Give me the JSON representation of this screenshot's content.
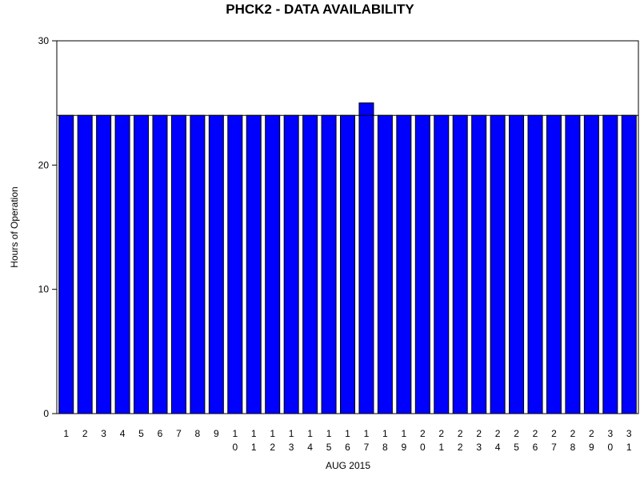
{
  "chart_data": {
    "type": "bar",
    "title": "PHCK2 - DATA AVAILABILITY",
    "xlabel": "AUG 2015",
    "ylabel": "Hours of Operation",
    "ylim": [
      0,
      30
    ],
    "yticks": [
      0,
      10,
      20,
      30
    ],
    "reference_line": 24,
    "bar_color": "#0000ff",
    "grid": false,
    "categories": [
      "1",
      "2",
      "3",
      "4",
      "5",
      "6",
      "7",
      "8",
      "9",
      "10",
      "11",
      "12",
      "13",
      "14",
      "15",
      "16",
      "17",
      "18",
      "19",
      "20",
      "21",
      "22",
      "23",
      "24",
      "25",
      "26",
      "27",
      "28",
      "29",
      "30",
      "31"
    ],
    "values": [
      24,
      24,
      24,
      24,
      24,
      24,
      24,
      24,
      24,
      24,
      24,
      24,
      24,
      24,
      24,
      24,
      25,
      24,
      24,
      24,
      24,
      24,
      24,
      24,
      24,
      24,
      24,
      24,
      24,
      24,
      24
    ]
  }
}
